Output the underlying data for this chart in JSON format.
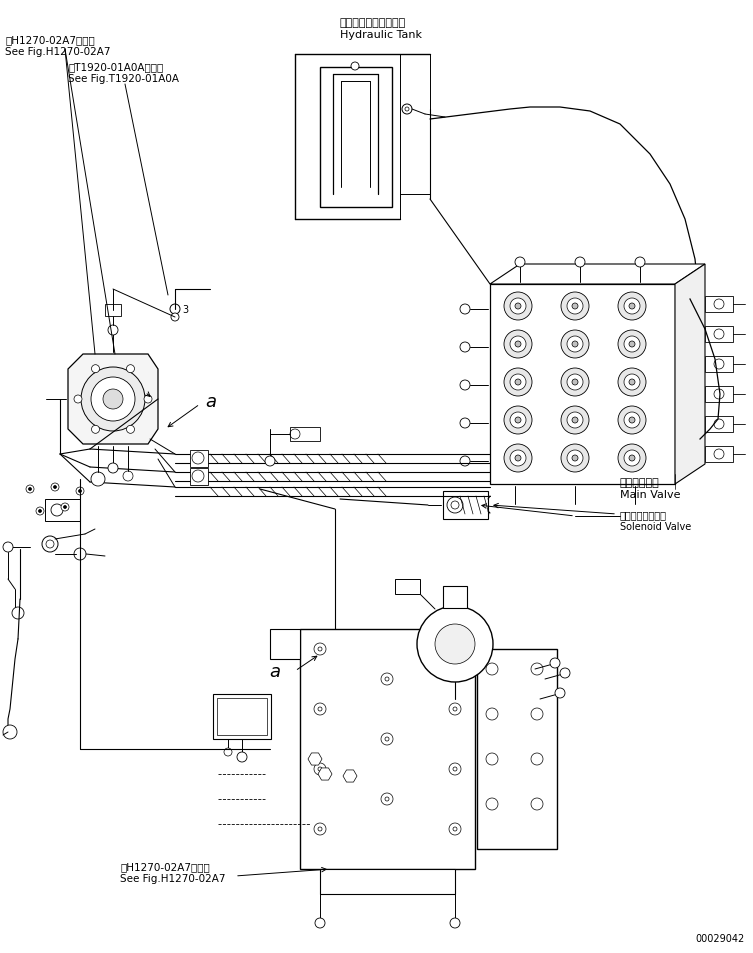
{
  "bg_color": "#ffffff",
  "line_color": "#000000",
  "fig_width": 7.53,
  "fig_height": 9.54,
  "dpi": 100,
  "labels": {
    "hydraulic_tank_jp": "ハイドロリックタンク",
    "hydraulic_tank_en": "Hydraulic Tank",
    "main_valve_jp": "メインバルブ",
    "main_valve_en": "Main Valve",
    "solenoid_valve_jp": "ソレノイドバルブ",
    "solenoid_valve_en": "Solenoid Valve",
    "ref1_jp": "第H1270-02A7図参照",
    "ref1_en": "See Fig.H1270-02A7",
    "ref2_jp": "第T1920-01A0A図参照",
    "ref2_en": "See Fig.T1920-01A0A",
    "ref3_jp": "第H1270-02A7図参照",
    "ref3_en": "See Fig.H1270-02A7",
    "part_number": "00029042",
    "label_a1": "a",
    "label_a2": "a",
    "num3": "3"
  },
  "font_sizes": {
    "ref": 7.5,
    "label": 8,
    "small": 7,
    "tiny": 7,
    "a_label": 13,
    "part_num": 7
  }
}
